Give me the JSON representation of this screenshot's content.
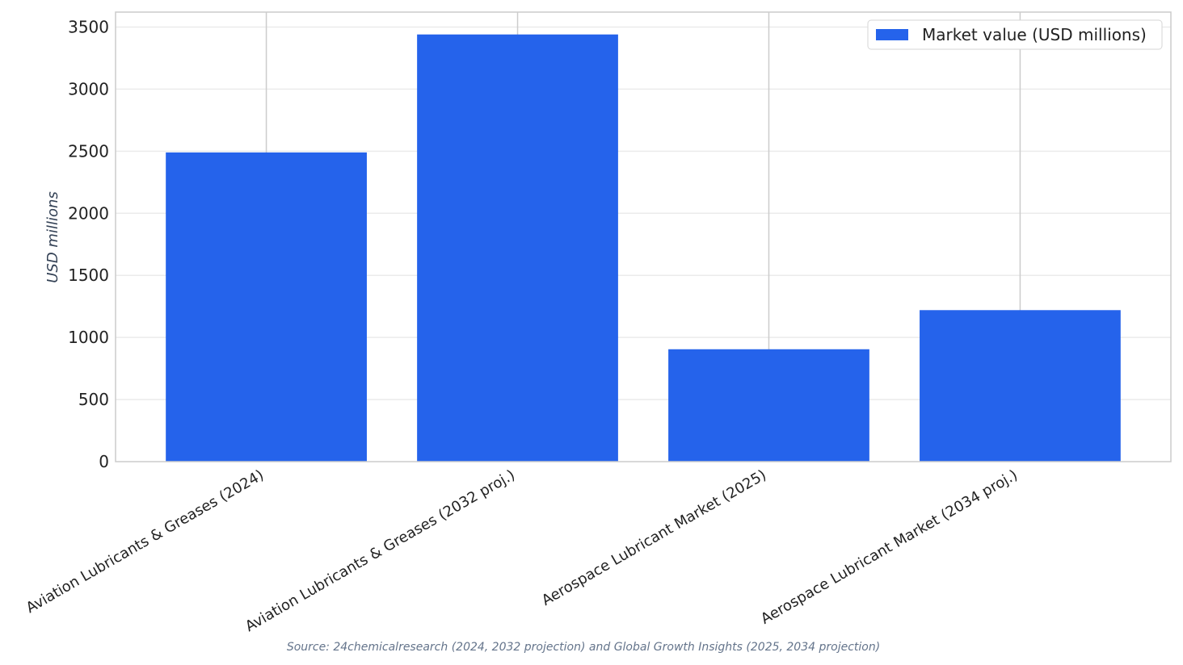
{
  "chart_data": {
    "type": "bar",
    "categories": [
      "Aviation Lubricants & Greases (2024)",
      "Aviation Lubricants & Greases (2032 proj.)",
      "Aerospace Lubricant Market (2025)",
      "Aerospace Lubricant Market (2034 proj.)"
    ],
    "series": [
      {
        "name": "Market value (USD millions)",
        "values": [
          2490,
          3440,
          905,
          1220
        ]
      }
    ],
    "title": "",
    "xlabel": "",
    "ylabel": "USD millions",
    "ylim": [
      0,
      3620
    ],
    "yticks": [
      0,
      500,
      1000,
      1500,
      2000,
      2500,
      3000,
      3500
    ],
    "grid": true,
    "legend": "top-right",
    "source": "Source: 24chemicalresearch (2024, 2032 projection) and Global Growth Insights (2025, 2034 projection)",
    "colors": {
      "bar": "#2563eb",
      "grid": "#ebebeb",
      "category_grid": "#cccccc",
      "axes": "#cccccc"
    }
  }
}
